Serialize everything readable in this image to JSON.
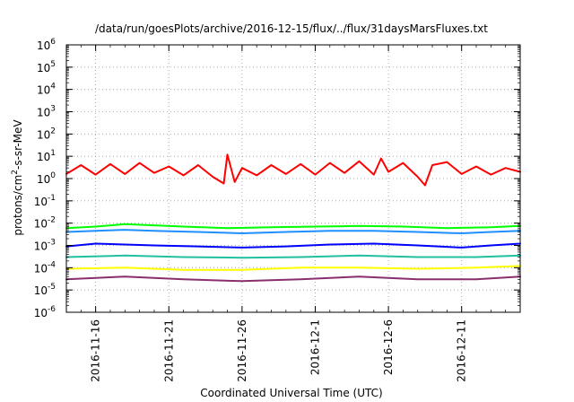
{
  "chart_data": {
    "type": "line",
    "title": "/data/run/goesPlots/archive/2016-12-15/flux/../flux/31daysMarsFluxes.txt",
    "xlabel": "Coordinated Universal Time (UTC)",
    "ylabel_parts": [
      "protons/cm",
      "2",
      "-s-sr-MeV"
    ],
    "yscale": "log",
    "ylim": [
      1e-06,
      1000000.0
    ],
    "y_ticks": [
      {
        "base": "10",
        "exp": "-6"
      },
      {
        "base": "10",
        "exp": "-5"
      },
      {
        "base": "10",
        "exp": "-4"
      },
      {
        "base": "10",
        "exp": "-3"
      },
      {
        "base": "10",
        "exp": "-2"
      },
      {
        "base": "10",
        "exp": "-1"
      },
      {
        "base": "10",
        "exp": "0"
      },
      {
        "base": "10",
        "exp": "1"
      },
      {
        "base": "10",
        "exp": "2"
      },
      {
        "base": "10",
        "exp": "3"
      },
      {
        "base": "10",
        "exp": "4"
      },
      {
        "base": "10",
        "exp": "5"
      },
      {
        "base": "10",
        "exp": "6"
      }
    ],
    "xlim": [
      "2016-11-14",
      "2016-12-15"
    ],
    "x_tick_labels": [
      "2016-11-16",
      "2016-11-21",
      "2016-11-26",
      "2016-12-1",
      "2016-12-6",
      "2016-12-11"
    ],
    "x_tick_dates": [
      "2016-11-16",
      "2016-11-21",
      "2016-11-26",
      "2016-12-01",
      "2016-12-06",
      "2016-12-11"
    ],
    "grid": true,
    "grid_style": "dotted",
    "series": [
      {
        "color": "#ff0000",
        "values": [
          {
            "x": "2016-11-14",
            "y": 1.6
          },
          {
            "x": "2016-11-15",
            "y": 4.0
          },
          {
            "x": "2016-11-16",
            "y": 1.5
          },
          {
            "x": "2016-11-17",
            "y": 4.5
          },
          {
            "x": "2016-11-18",
            "y": 1.6
          },
          {
            "x": "2016-11-19",
            "y": 5.0
          },
          {
            "x": "2016-11-20",
            "y": 1.8
          },
          {
            "x": "2016-11-21",
            "y": 3.5
          },
          {
            "x": "2016-11-22",
            "y": 1.4
          },
          {
            "x": "2016-11-23",
            "y": 4.0
          },
          {
            "x": "2016-11-24",
            "y": 1.2
          },
          {
            "x": "2016-11-24T18:00",
            "y": 0.6
          },
          {
            "x": "2016-11-25",
            "y": 12.0
          },
          {
            "x": "2016-11-25T12:00",
            "y": 0.7
          },
          {
            "x": "2016-11-26",
            "y": 3.0
          },
          {
            "x": "2016-11-27",
            "y": 1.4
          },
          {
            "x": "2016-11-28",
            "y": 4.0
          },
          {
            "x": "2016-11-29",
            "y": 1.6
          },
          {
            "x": "2016-11-30",
            "y": 4.5
          },
          {
            "x": "2016-12-01",
            "y": 1.5
          },
          {
            "x": "2016-12-02",
            "y": 5.0
          },
          {
            "x": "2016-12-03",
            "y": 1.8
          },
          {
            "x": "2016-12-04",
            "y": 6.0
          },
          {
            "x": "2016-12-05",
            "y": 1.5
          },
          {
            "x": "2016-12-05T12:00",
            "y": 8.0
          },
          {
            "x": "2016-12-06",
            "y": 2.0
          },
          {
            "x": "2016-12-07",
            "y": 5.0
          },
          {
            "x": "2016-12-08",
            "y": 1.2
          },
          {
            "x": "2016-12-08T12:00",
            "y": 0.5
          },
          {
            "x": "2016-12-09",
            "y": 4.0
          },
          {
            "x": "2016-12-10",
            "y": 5.5
          },
          {
            "x": "2016-12-11",
            "y": 1.6
          },
          {
            "x": "2016-12-12",
            "y": 3.5
          },
          {
            "x": "2016-12-13",
            "y": 1.5
          },
          {
            "x": "2016-12-14",
            "y": 3.0
          },
          {
            "x": "2016-12-15",
            "y": 2.0
          }
        ]
      },
      {
        "color": "#00ff00",
        "values": [
          {
            "x": "2016-11-14",
            "y": 0.006
          },
          {
            "x": "2016-11-16",
            "y": 0.007
          },
          {
            "x": "2016-11-18",
            "y": 0.009
          },
          {
            "x": "2016-11-20",
            "y": 0.008
          },
          {
            "x": "2016-11-22",
            "y": 0.007
          },
          {
            "x": "2016-11-25",
            "y": 0.006
          },
          {
            "x": "2016-11-28",
            "y": 0.0065
          },
          {
            "x": "2016-12-01",
            "y": 0.007
          },
          {
            "x": "2016-12-04",
            "y": 0.0075
          },
          {
            "x": "2016-12-07",
            "y": 0.007
          },
          {
            "x": "2016-12-10",
            "y": 0.006
          },
          {
            "x": "2016-12-13",
            "y": 0.0065
          },
          {
            "x": "2016-12-15",
            "y": 0.0075
          }
        ]
      },
      {
        "color": "#1f8fff",
        "values": [
          {
            "x": "2016-11-14",
            "y": 0.004
          },
          {
            "x": "2016-11-16",
            "y": 0.0045
          },
          {
            "x": "2016-11-18",
            "y": 0.005
          },
          {
            "x": "2016-11-20",
            "y": 0.0045
          },
          {
            "x": "2016-11-23",
            "y": 0.004
          },
          {
            "x": "2016-11-26",
            "y": 0.0035
          },
          {
            "x": "2016-11-29",
            "y": 0.004
          },
          {
            "x": "2016-12-02",
            "y": 0.0045
          },
          {
            "x": "2016-12-05",
            "y": 0.0045
          },
          {
            "x": "2016-12-08",
            "y": 0.004
          },
          {
            "x": "2016-12-11",
            "y": 0.0035
          },
          {
            "x": "2016-12-13",
            "y": 0.004
          },
          {
            "x": "2016-12-15",
            "y": 0.0045
          }
        ]
      },
      {
        "color": "#0000ff",
        "values": [
          {
            "x": "2016-11-14",
            "y": 0.0009
          },
          {
            "x": "2016-11-16",
            "y": 0.0012
          },
          {
            "x": "2016-11-18",
            "y": 0.0011
          },
          {
            "x": "2016-11-20",
            "y": 0.001
          },
          {
            "x": "2016-11-23",
            "y": 0.0009
          },
          {
            "x": "2016-11-26",
            "y": 0.0008
          },
          {
            "x": "2016-11-29",
            "y": 0.0009
          },
          {
            "x": "2016-12-02",
            "y": 0.0011
          },
          {
            "x": "2016-12-05",
            "y": 0.0012
          },
          {
            "x": "2016-12-08",
            "y": 0.001
          },
          {
            "x": "2016-12-11",
            "y": 0.0008
          },
          {
            "x": "2016-12-13",
            "y": 0.001
          },
          {
            "x": "2016-12-15",
            "y": 0.0012
          }
        ]
      },
      {
        "color": "#20c0a0",
        "values": [
          {
            "x": "2016-11-14",
            "y": 0.0003
          },
          {
            "x": "2016-11-18",
            "y": 0.00035
          },
          {
            "x": "2016-11-22",
            "y": 0.0003
          },
          {
            "x": "2016-11-26",
            "y": 0.00028
          },
          {
            "x": "2016-11-30",
            "y": 0.0003
          },
          {
            "x": "2016-12-04",
            "y": 0.00035
          },
          {
            "x": "2016-12-08",
            "y": 0.0003
          },
          {
            "x": "2016-12-12",
            "y": 0.0003
          },
          {
            "x": "2016-12-15",
            "y": 0.00035
          }
        ]
      },
      {
        "color": "#ffff00",
        "values": [
          {
            "x": "2016-11-14",
            "y": 9e-05
          },
          {
            "x": "2016-11-18",
            "y": 0.0001
          },
          {
            "x": "2016-11-22",
            "y": 8e-05
          },
          {
            "x": "2016-11-26",
            "y": 8e-05
          },
          {
            "x": "2016-11-30",
            "y": 0.0001
          },
          {
            "x": "2016-12-04",
            "y": 0.0001
          },
          {
            "x": "2016-12-08",
            "y": 9e-05
          },
          {
            "x": "2016-12-12",
            "y": 0.0001
          },
          {
            "x": "2016-12-15",
            "y": 0.00012
          }
        ]
      },
      {
        "color": "#8b2e6e",
        "values": [
          {
            "x": "2016-11-14",
            "y": 3e-05
          },
          {
            "x": "2016-11-18",
            "y": 4e-05
          },
          {
            "x": "2016-11-22",
            "y": 3e-05
          },
          {
            "x": "2016-11-26",
            "y": 2.5e-05
          },
          {
            "x": "2016-11-30",
            "y": 3e-05
          },
          {
            "x": "2016-12-04",
            "y": 4e-05
          },
          {
            "x": "2016-12-08",
            "y": 3e-05
          },
          {
            "x": "2016-12-12",
            "y": 3e-05
          },
          {
            "x": "2016-12-15",
            "y": 4e-05
          }
        ]
      }
    ]
  }
}
